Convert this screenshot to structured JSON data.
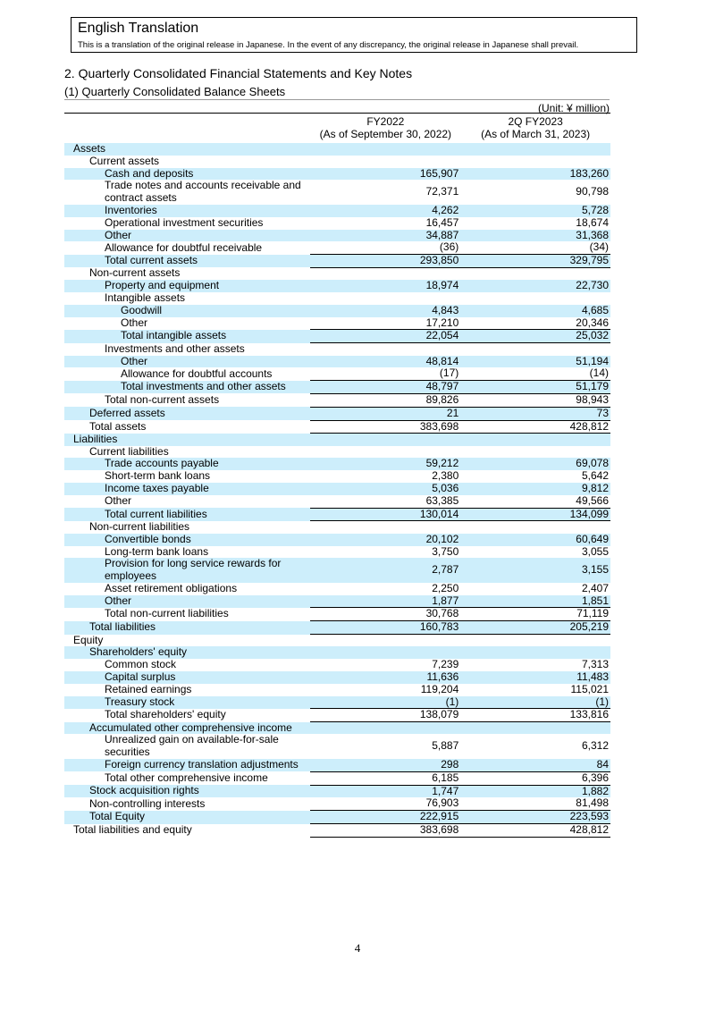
{
  "header": {
    "title": "English Translation",
    "note": "This is a translation of the original release in Japanese. In the event of any discrepancy, the original release in Japanese shall prevail."
  },
  "section_title": "2. Quarterly Consolidated Financial Statements and Key Notes",
  "subsection_title": "(1) Quarterly Consolidated Balance Sheets",
  "unit": "(Unit: ¥ million)",
  "columns": [
    {
      "line1": "FY2022",
      "line2": "(As of September 30, 2022)"
    },
    {
      "line1": "2Q FY2023",
      "line2": "(As of March 31, 2023)"
    }
  ],
  "rows": [
    {
      "label": "Assets",
      "level": 0,
      "v1": "",
      "v2": "",
      "shaded": true
    },
    {
      "label": "Current assets",
      "level": 1,
      "v1": "",
      "v2": ""
    },
    {
      "label": "Cash and deposits",
      "level": 2,
      "v1": "165,907",
      "v2": "183,260",
      "shaded": true
    },
    {
      "label": "Trade notes and accounts receivable and contract assets",
      "level": 2,
      "v1": "72,371",
      "v2": "90,798"
    },
    {
      "label": "Inventories",
      "level": 2,
      "v1": "4,262",
      "v2": "5,728",
      "shaded": true
    },
    {
      "label": "Operational investment securities",
      "level": 2,
      "v1": "16,457",
      "v2": "18,674"
    },
    {
      "label": "Other",
      "level": 2,
      "v1": "34,887",
      "v2": "31,368",
      "shaded": true
    },
    {
      "label": "Allowance for doubtful receivable",
      "level": 2,
      "v1": "(36)",
      "v2": "(34)"
    },
    {
      "label": "Total current assets",
      "level": 2,
      "v1": "293,850",
      "v2": "329,795",
      "shaded": true,
      "total": true
    },
    {
      "label": "Non-current assets",
      "level": 1,
      "v1": "",
      "v2": "",
      "total": true
    },
    {
      "label": "Property and equipment",
      "level": 2,
      "v1": "18,974",
      "v2": "22,730",
      "shaded": true
    },
    {
      "label": "Intangible assets",
      "level": 2,
      "v1": "",
      "v2": ""
    },
    {
      "label": "Goodwill",
      "level": 3,
      "v1": "4,843",
      "v2": "4,685",
      "shaded": true
    },
    {
      "label": "Other",
      "level": 3,
      "v1": "17,210",
      "v2": "20,346"
    },
    {
      "label": "Total intangible assets",
      "level": 3,
      "v1": "22,054",
      "v2": "25,032",
      "shaded": true,
      "total": true
    },
    {
      "label": "Investments and other assets",
      "level": 2,
      "v1": "",
      "v2": "",
      "total": true
    },
    {
      "label": "Other",
      "level": 3,
      "v1": "48,814",
      "v2": "51,194",
      "shaded": true
    },
    {
      "label": "Allowance for doubtful accounts",
      "level": 3,
      "v1": "(17)",
      "v2": "(14)"
    },
    {
      "label": "Total investments and other assets",
      "level": 3,
      "v1": "48,797",
      "v2": "51,179",
      "shaded": true,
      "total": true
    },
    {
      "label": "Total non-current assets",
      "level": 2,
      "v1": "89,826",
      "v2": "98,943",
      "total": true
    },
    {
      "label": "Deferred assets",
      "level": 1,
      "v1": "21",
      "v2": "73",
      "shaded": true,
      "total": true
    },
    {
      "label": "Total assets",
      "level": 1,
      "v1": "383,698",
      "v2": "428,812",
      "total": true,
      "end": true
    },
    {
      "label": "Liabilities",
      "level": 0,
      "v1": "",
      "v2": "",
      "shaded": true
    },
    {
      "label": "Current liabilities",
      "level": 1,
      "v1": "",
      "v2": ""
    },
    {
      "label": "Trade accounts payable",
      "level": 2,
      "v1": "59,212",
      "v2": "69,078",
      "shaded": true
    },
    {
      "label": "Short-term bank loans",
      "level": 2,
      "v1": "2,380",
      "v2": "5,642"
    },
    {
      "label": "Income taxes payable",
      "level": 2,
      "v1": "5,036",
      "v2": "9,812",
      "shaded": true
    },
    {
      "label": "Other",
      "level": 2,
      "v1": "63,385",
      "v2": "49,566"
    },
    {
      "label": "Total current liabilities",
      "level": 2,
      "v1": "130,014",
      "v2": "134,099",
      "shaded": true,
      "total": true,
      "end": true
    },
    {
      "label": "Non-current liabilities",
      "level": 1,
      "v1": "",
      "v2": ""
    },
    {
      "label": "Convertible bonds",
      "level": 2,
      "v1": "20,102",
      "v2": "60,649",
      "shaded": true
    },
    {
      "label": "Long-term bank loans",
      "level": 2,
      "v1": "3,750",
      "v2": "3,055"
    },
    {
      "label": "Provision for long service rewards for employees",
      "level": 2,
      "v1": "2,787",
      "v2": "3,155",
      "shaded": true
    },
    {
      "label": "Asset retirement obligations",
      "level": 2,
      "v1": "2,250",
      "v2": "2,407"
    },
    {
      "label": "Other",
      "level": 2,
      "v1": "1,877",
      "v2": "1,851",
      "shaded": true
    },
    {
      "label": "Total non-current liabilities",
      "level": 2,
      "v1": "30,768",
      "v2": "71,119",
      "total": true
    },
    {
      "label": "Total liabilities",
      "level": 1,
      "v1": "160,783",
      "v2": "205,219",
      "shaded": true,
      "total": true,
      "end": true
    },
    {
      "label": "Equity",
      "level": 0,
      "v1": "",
      "v2": ""
    },
    {
      "label": "Shareholders' equity",
      "level": 1,
      "v1": "",
      "v2": "",
      "shaded": true
    },
    {
      "label": "Common stock",
      "level": 2,
      "v1": "7,239",
      "v2": "7,313"
    },
    {
      "label": "Capital surplus",
      "level": 2,
      "v1": "11,636",
      "v2": "11,483",
      "shaded": true
    },
    {
      "label": "Retained earnings",
      "level": 2,
      "v1": "119,204",
      "v2": "115,021"
    },
    {
      "label": "Treasury stock",
      "level": 2,
      "v1": "(1)",
      "v2": "(1)",
      "shaded": true
    },
    {
      "label": "Total shareholders' equity",
      "level": 2,
      "v1": "138,079",
      "v2": "133,816",
      "total": true,
      "end": true
    },
    {
      "label": "Accumulated other comprehensive income",
      "level": 1,
      "v1": "",
      "v2": "",
      "shaded": true
    },
    {
      "label": "Unrealized gain on available-for-sale securities",
      "level": 2,
      "v1": "5,887",
      "v2": "6,312"
    },
    {
      "label": "Foreign currency translation adjustments",
      "level": 2,
      "v1": "298",
      "v2": "84",
      "shaded": true
    },
    {
      "label": "Total other comprehensive income",
      "level": 2,
      "v1": "6,185",
      "v2": "6,396",
      "total": true
    },
    {
      "label": "Stock acquisition rights",
      "level": 1,
      "v1": "1,747",
      "v2": "1,882",
      "shaded": true,
      "total": true
    },
    {
      "label": "Non-controlling interests",
      "level": 1,
      "v1": "76,903",
      "v2": "81,498"
    },
    {
      "label": "Total Equity",
      "level": 1,
      "v1": "222,915",
      "v2": "223,593",
      "shaded": true,
      "total": true
    },
    {
      "label": "Total liabilities and equity",
      "level": 0,
      "v1": "383,698",
      "v2": "428,812",
      "total": true,
      "end": true
    }
  ],
  "page_number": "4"
}
